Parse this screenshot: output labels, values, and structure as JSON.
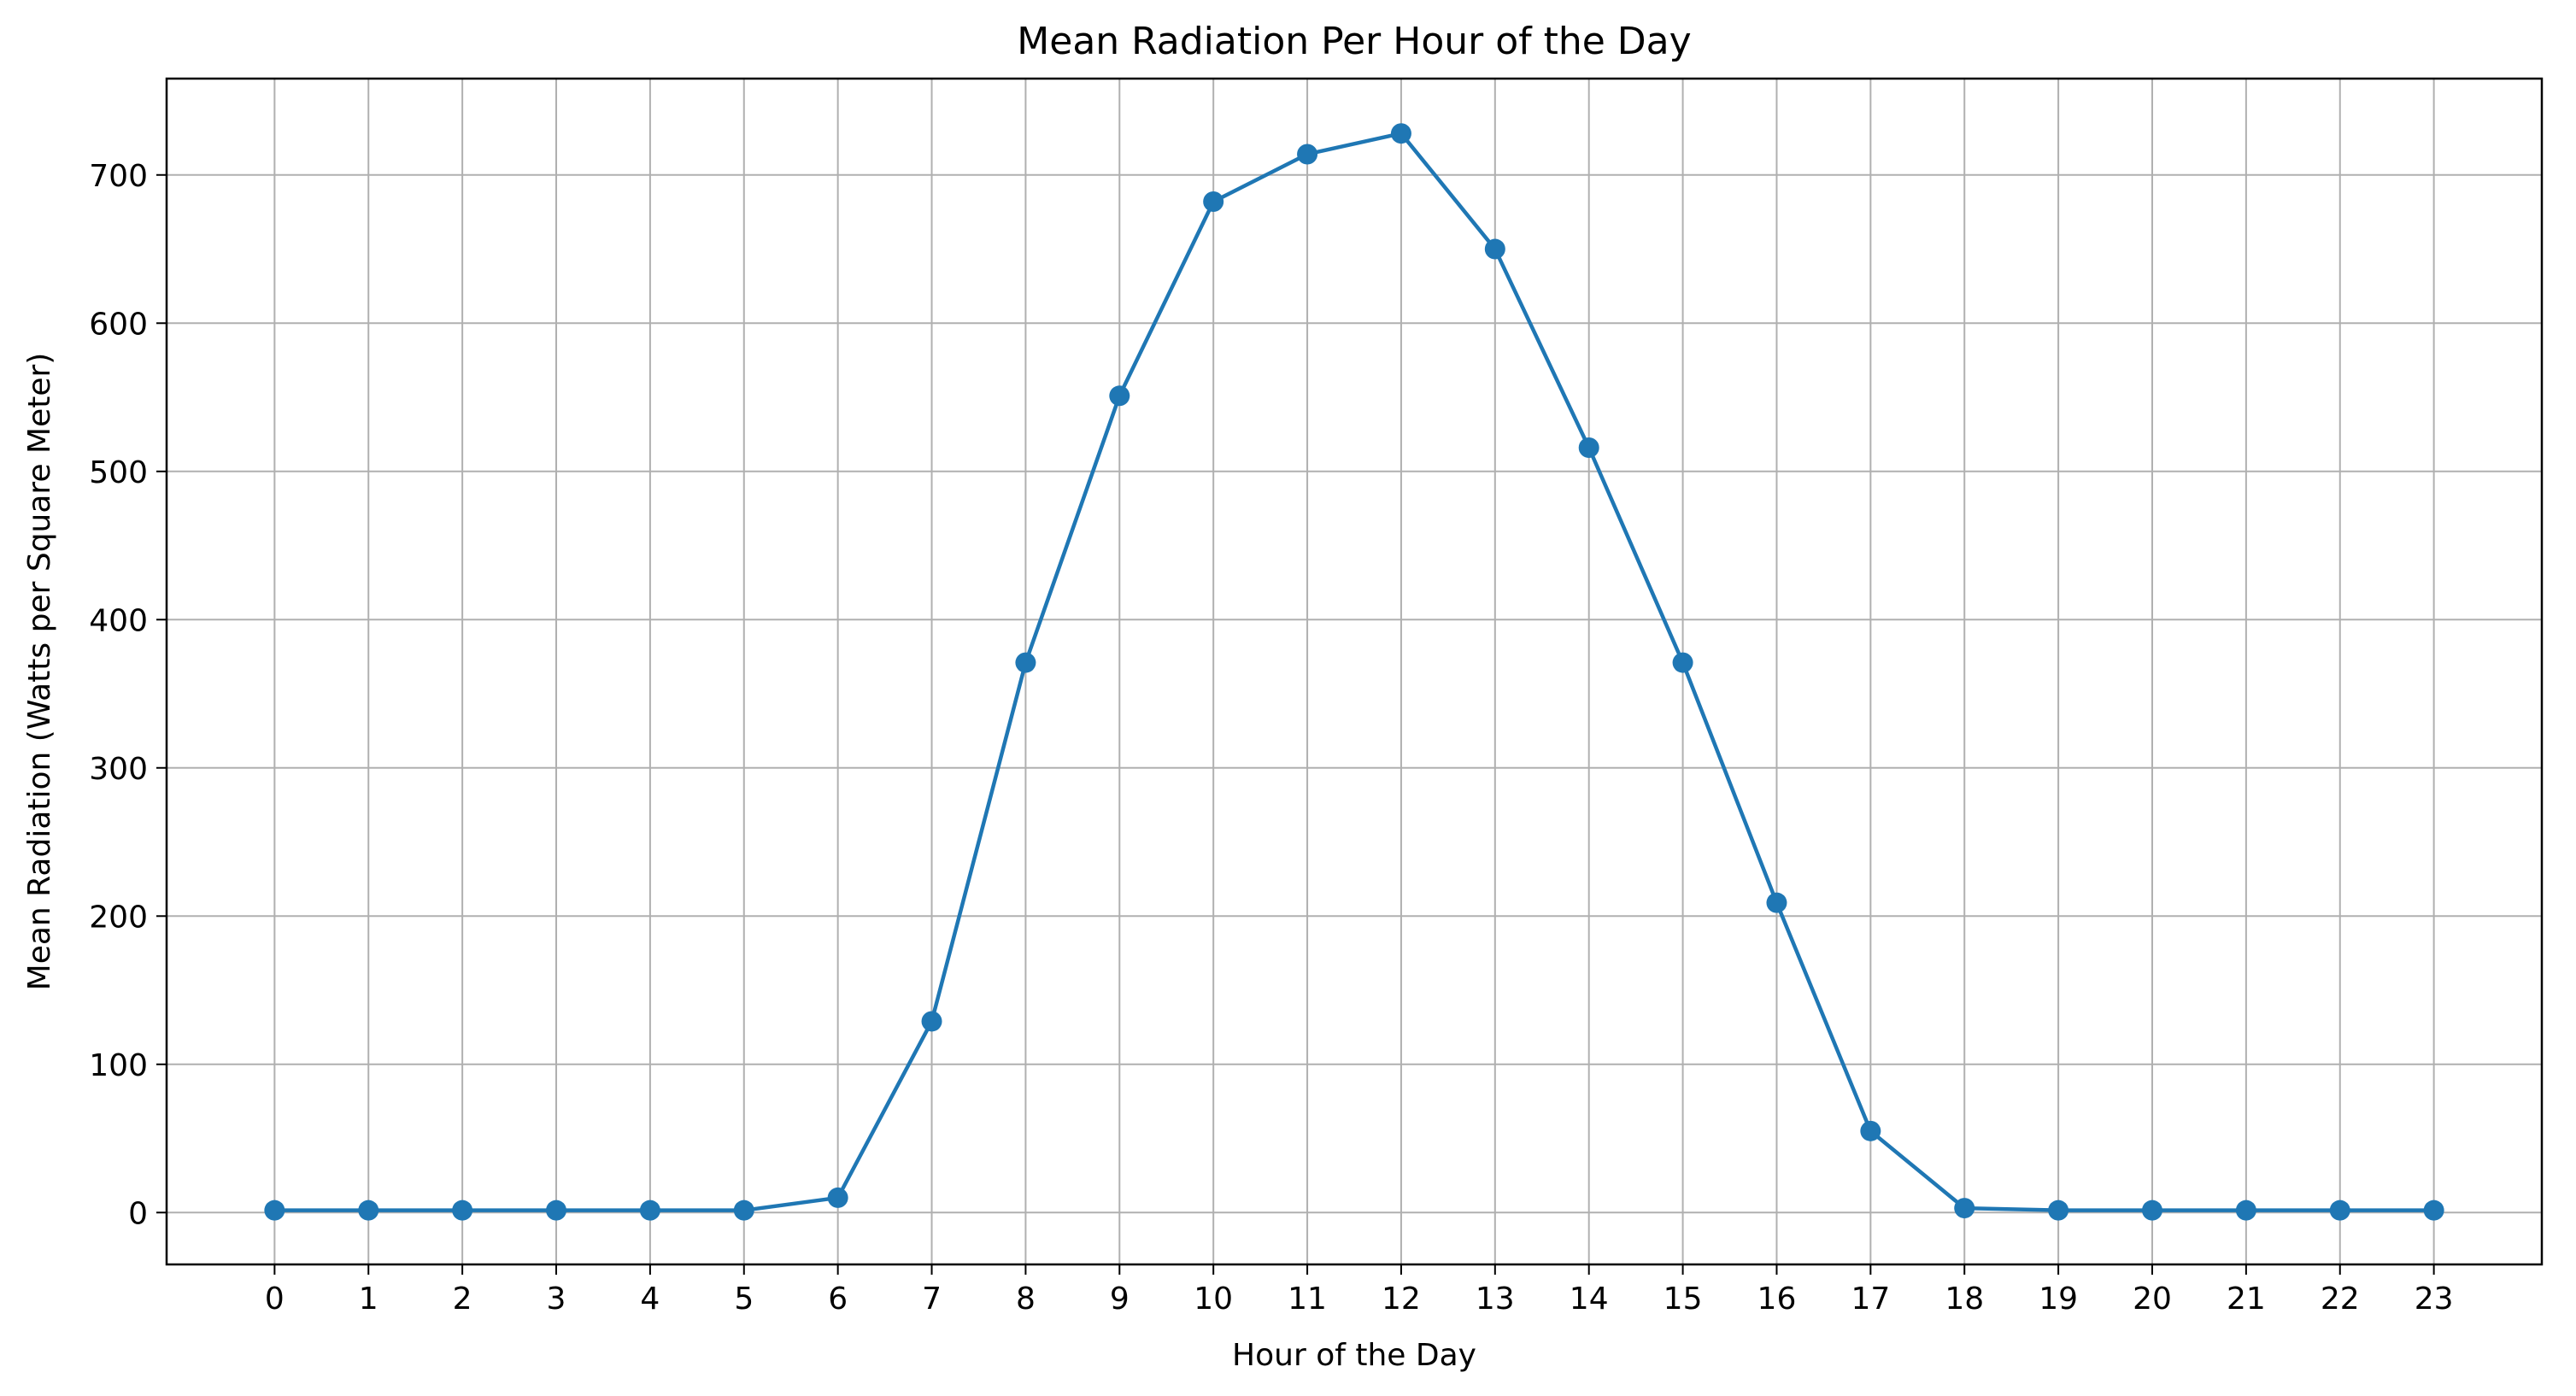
{
  "chart_data": {
    "type": "line",
    "title": "Mean Radiation Per Hour of the Day",
    "xlabel": "Hour of the Day",
    "ylabel": "Mean Radiation (Watts per Square Meter)",
    "x": [
      0,
      1,
      2,
      3,
      4,
      5,
      6,
      7,
      8,
      9,
      10,
      11,
      12,
      13,
      14,
      15,
      16,
      17,
      18,
      19,
      20,
      21,
      22,
      23
    ],
    "series": [
      {
        "values": [
          1.5,
          1.5,
          1.5,
          1.5,
          1.5,
          1.5,
          10,
          129,
          371,
          551,
          682,
          714,
          728,
          650,
          516,
          371,
          209,
          55,
          3,
          1.5,
          1.5,
          1.5,
          1.5,
          1.5
        ]
      }
    ],
    "x_ticks": [
      "0",
      "1",
      "2",
      "3",
      "4",
      "5",
      "6",
      "7",
      "8",
      "9",
      "10",
      "11",
      "12",
      "13",
      "14",
      "15",
      "16",
      "17",
      "18",
      "19",
      "20",
      "21",
      "22",
      "23"
    ],
    "y_ticks": [
      "0",
      "100",
      "200",
      "300",
      "400",
      "500",
      "600",
      "700"
    ],
    "xlim": [
      -1.15,
      24.15
    ],
    "ylim": [
      -35,
      765
    ],
    "grid": true,
    "marker": "circle",
    "colors": {
      "line": "#1f77b4",
      "grid": "#b0b0b0",
      "axes": "#000000"
    }
  }
}
